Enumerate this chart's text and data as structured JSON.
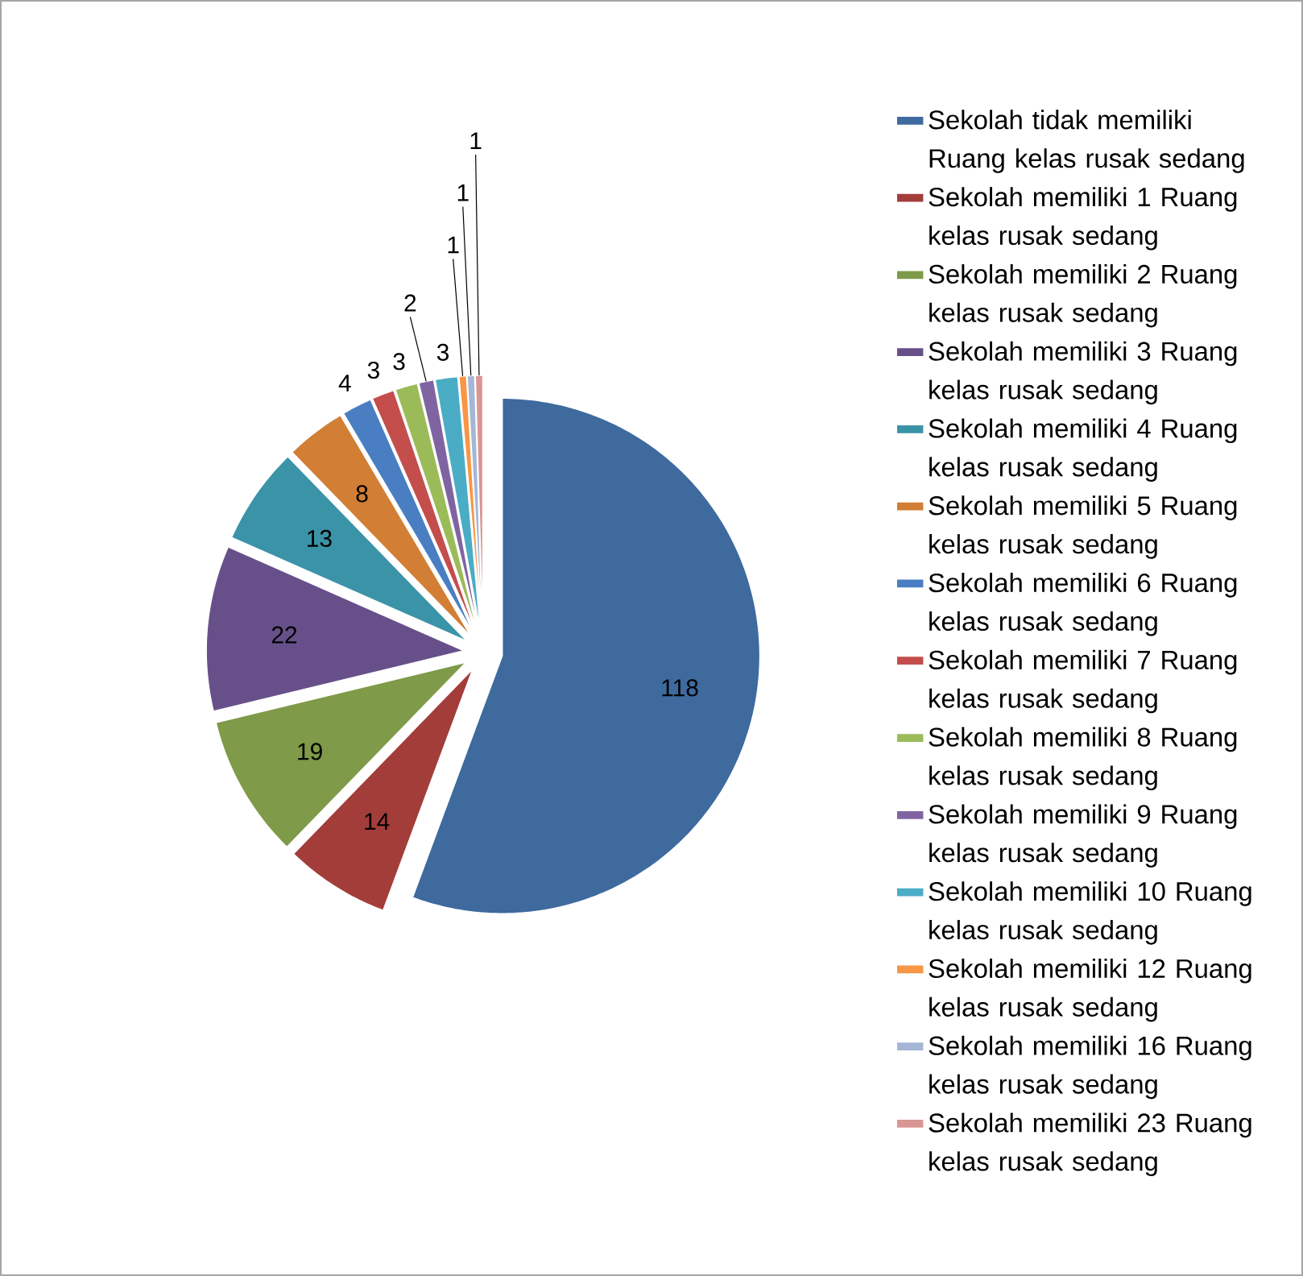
{
  "chart_data": {
    "type": "pie",
    "categories": [
      "Sekolah tidak memiliki Ruang kelas rusak sedang",
      "Sekolah memiliki 1 Ruang kelas rusak sedang",
      "Sekolah memiliki 2 Ruang kelas rusak sedang",
      "Sekolah memiliki 3 Ruang kelas rusak sedang",
      "Sekolah memiliki 4 Ruang kelas rusak sedang",
      "Sekolah memiliki 5 Ruang kelas rusak sedang",
      "Sekolah memiliki 6 Ruang kelas rusak sedang",
      "Sekolah memiliki 7 Ruang kelas rusak sedang",
      "Sekolah memiliki 8 Ruang kelas rusak sedang",
      "Sekolah memiliki 9 Ruang kelas rusak sedang",
      "Sekolah memiliki 10 Ruang kelas rusak sedang",
      "Sekolah memiliki 12 Ruang kelas rusak sedang",
      "Sekolah memiliki 16 Ruang kelas rusak sedang",
      "Sekolah memiliki 23 Ruang kelas rusak sedang"
    ],
    "values": [
      118,
      14,
      19,
      22,
      13,
      8,
      4,
      3,
      3,
      2,
      3,
      1,
      1,
      1
    ],
    "colors": [
      "#3e6a9e",
      "#a33d3a",
      "#7f9a48",
      "#67508a",
      "#3b93a8",
      "#d27e35",
      "#4a7ec2",
      "#c44e4c",
      "#9bbb59",
      "#8064a2",
      "#4bacc6",
      "#f79646",
      "#a5b6d6",
      "#d99694"
    ],
    "data_labels": true,
    "legend": "right"
  }
}
